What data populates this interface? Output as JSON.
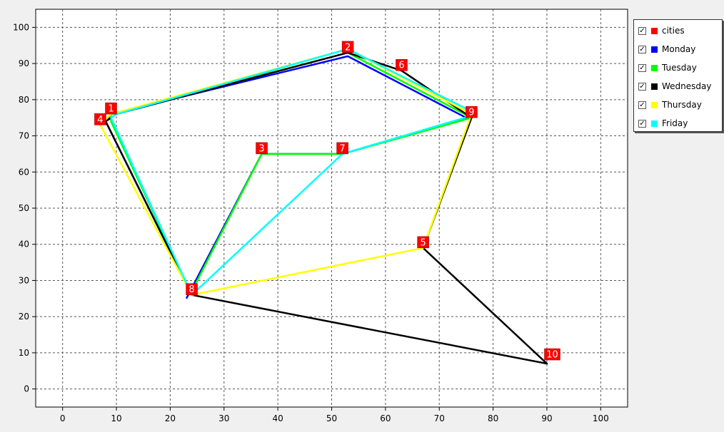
{
  "chart_data": {
    "type": "line",
    "xlim": [
      -5,
      105
    ],
    "ylim": [
      -5,
      105
    ],
    "xticks": [
      0,
      10,
      20,
      30,
      40,
      50,
      60,
      70,
      80,
      90,
      100
    ],
    "yticks": [
      0,
      10,
      20,
      30,
      40,
      50,
      60,
      70,
      80,
      90,
      100
    ],
    "grid": true,
    "legend_position": "right",
    "cities": [
      {
        "label": "1",
        "x": 9,
        "y": 76
      },
      {
        "label": "2",
        "x": 53,
        "y": 93
      },
      {
        "label": "3",
        "x": 37,
        "y": 65
      },
      {
        "label": "4",
        "x": 7,
        "y": 73
      },
      {
        "label": "5",
        "x": 67,
        "y": 39
      },
      {
        "label": "6",
        "x": 63,
        "y": 88
      },
      {
        "label": "7",
        "x": 52,
        "y": 65
      },
      {
        "label": "8",
        "x": 24,
        "y": 26
      },
      {
        "label": "9",
        "x": 76,
        "y": 75
      },
      {
        "label": "10",
        "x": 91,
        "y": 8
      }
    ],
    "series": [
      {
        "name": "Monday",
        "color": "#0000ff",
        "points": [
          [
            24,
            26
          ],
          [
            8,
            74
          ],
          [
            9,
            76
          ],
          [
            53,
            92
          ],
          [
            75,
            75
          ],
          [
            52,
            65
          ],
          [
            37,
            65
          ],
          [
            23,
            25
          ]
        ]
      },
      {
        "name": "Tuesday",
        "color": "#00ff00",
        "points": [
          [
            24,
            26
          ],
          [
            9,
            74
          ],
          [
            9,
            76
          ],
          [
            53,
            93
          ],
          [
            76,
            75
          ],
          [
            52,
            65
          ],
          [
            37,
            65
          ],
          [
            24,
            27
          ]
        ]
      },
      {
        "name": "Wednesday",
        "color": "#000000",
        "points": [
          [
            24,
            26
          ],
          [
            8,
            74
          ],
          [
            10,
            76
          ],
          [
            53,
            93
          ],
          [
            63,
            88
          ],
          [
            76,
            75
          ],
          [
            67,
            39
          ],
          [
            90,
            7
          ],
          [
            24,
            26
          ]
        ]
      },
      {
        "name": "Thursday",
        "color": "#ffff00",
        "points": [
          [
            24,
            26
          ],
          [
            7,
            73
          ],
          [
            9,
            76
          ],
          [
            53,
            94
          ],
          [
            76,
            76
          ],
          [
            67,
            39
          ],
          [
            24,
            26
          ]
        ]
      },
      {
        "name": "Friday",
        "color": "#00ffff",
        "points": [
          [
            24,
            26
          ],
          [
            9,
            75
          ],
          [
            10,
            76
          ],
          [
            53,
            94
          ],
          [
            77,
            76
          ],
          [
            52,
            65
          ],
          [
            24,
            26
          ]
        ]
      }
    ],
    "cities_color": "#ff0000"
  },
  "legend": {
    "items": [
      {
        "label": "cities",
        "color": "#ff0000"
      },
      {
        "label": "Monday",
        "color": "#0000ff"
      },
      {
        "label": "Tuesday",
        "color": "#00ff00"
      },
      {
        "label": "Wednesday",
        "color": "#000000"
      },
      {
        "label": "Thursday",
        "color": "#ffff00"
      },
      {
        "label": "Friday",
        "color": "#00ffff"
      }
    ],
    "check_glyph": "✓"
  }
}
